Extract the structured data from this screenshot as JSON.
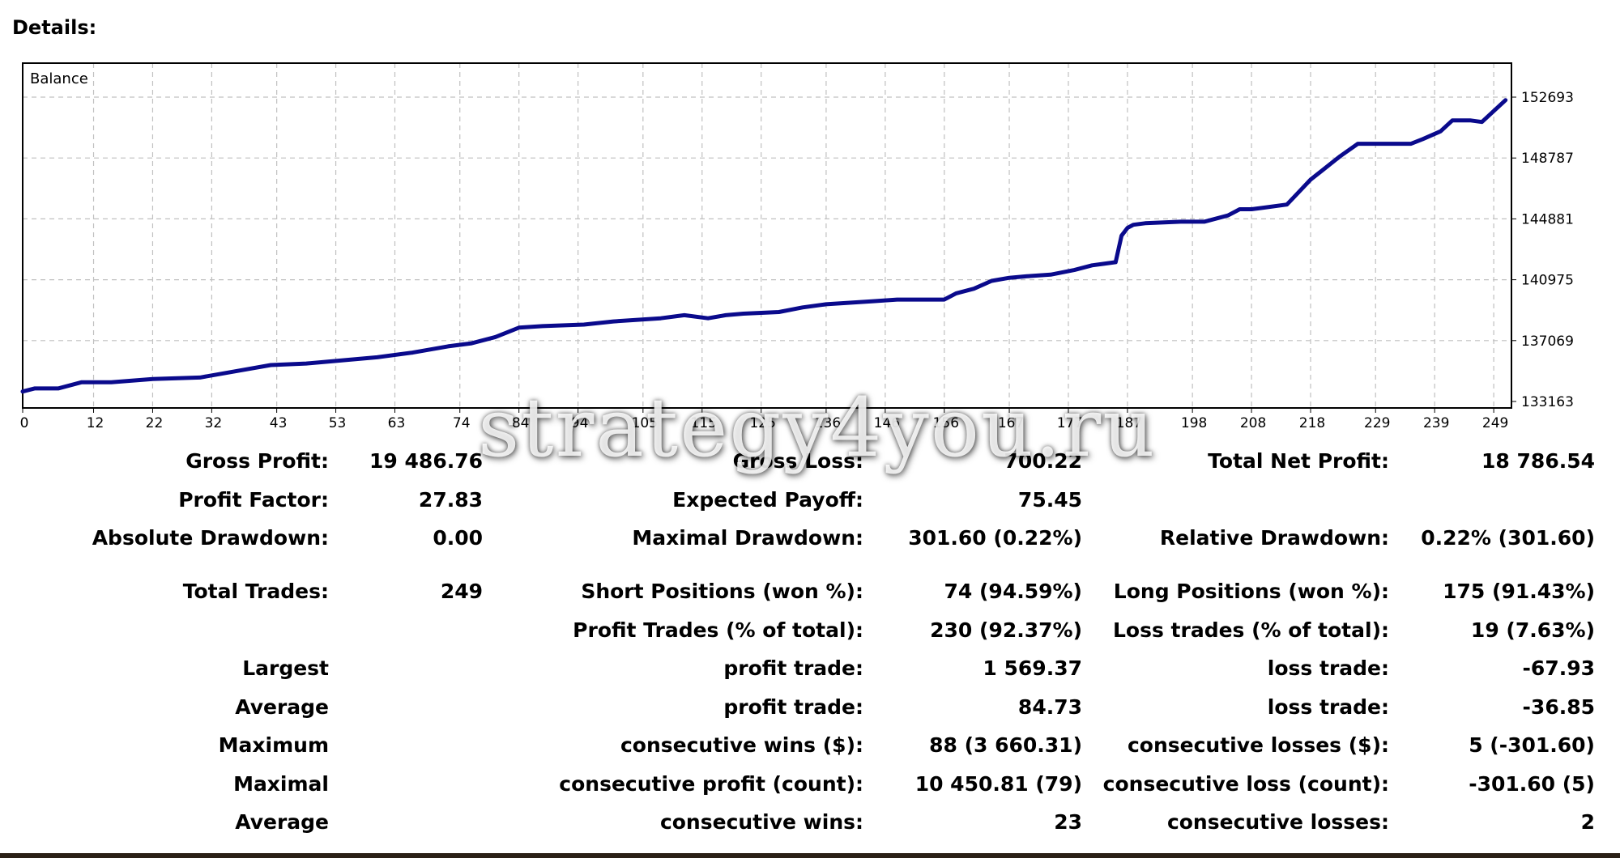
{
  "page": {
    "title": "Details:",
    "watermark": "strategy4you.ru"
  },
  "colors": {
    "line": "#0a0a8c",
    "grid": "#c0c0c0",
    "frame": "#000000",
    "background": "#ffffff"
  },
  "chart_data": {
    "type": "line",
    "title": "Balance",
    "xlabel": "",
    "ylabel": "",
    "xlim": [
      0,
      252
    ],
    "ylim": [
      133163,
      152693
    ],
    "x_ticks": [
      0,
      12,
      22,
      32,
      43,
      53,
      63,
      74,
      84,
      94,
      105,
      115,
      125,
      136,
      146,
      156,
      167,
      177,
      187,
      198,
      208,
      218,
      229,
      239,
      249
    ],
    "y_ticks": [
      152693,
      148787,
      144881,
      140975,
      137069,
      133163
    ],
    "y_tick_labels": [
      "152693",
      "148787",
      "144881",
      "140975",
      "137069",
      "133163"
    ],
    "grid": true,
    "series": [
      {
        "x": [
          0,
          2,
          6,
          10,
          15,
          22,
          30,
          36,
          42,
          48,
          54,
          60,
          66,
          72,
          76,
          80,
          84,
          88,
          95,
          100,
          108,
          112,
          116,
          119,
          122,
          128,
          132,
          136,
          140,
          144,
          148,
          152,
          156,
          158,
          161,
          164,
          167,
          170,
          174,
          178,
          181,
          183,
          185,
          186,
          187,
          188,
          190,
          196,
          200,
          204,
          206,
          208,
          210,
          214,
          216,
          218,
          220,
          223,
          226,
          230,
          235,
          237,
          240,
          242,
          245,
          247,
          249,
          251
        ],
        "y": [
          133800,
          134000,
          134000,
          134400,
          134400,
          134600,
          134700,
          135100,
          135500,
          135600,
          135800,
          136000,
          136300,
          136700,
          136900,
          137300,
          137900,
          138000,
          138100,
          138300,
          138500,
          138700,
          138500,
          138700,
          138800,
          138900,
          139200,
          139400,
          139500,
          139600,
          139700,
          139700,
          139700,
          140100,
          140400,
          140900,
          141100,
          141200,
          141300,
          141600,
          141900,
          142000,
          142100,
          143800,
          144300,
          144500,
          144600,
          144700,
          144700,
          145100,
          145500,
          145500,
          145600,
          145800,
          146600,
          147400,
          148000,
          148900,
          149700,
          149700,
          149700,
          150000,
          150500,
          151200,
          151200,
          151100,
          151800,
          152500
        ]
      }
    ]
  },
  "stats": {
    "rows": [
      [
        "Gross Profit:",
        "19 486.76",
        "Gross Loss:",
        "700.22",
        "Total Net Profit:",
        "18 786.54"
      ],
      [
        "Profit Factor:",
        "27.83",
        "Expected Payoff:",
        "75.45",
        "",
        ""
      ],
      [
        "Absolute Drawdown:",
        "0.00",
        "Maximal Drawdown:",
        "301.60 (0.22%)",
        "Relative Drawdown:",
        "0.22% (301.60)"
      ],
      [
        "Total Trades:",
        "249",
        "Short Positions (won %):",
        "74 (94.59%)",
        "Long Positions (won %):",
        "175 (91.43%)"
      ],
      [
        "",
        "",
        "Profit Trades (% of total):",
        "230 (92.37%)",
        "Loss trades (% of total):",
        "19 (7.63%)"
      ],
      [
        "Largest",
        "",
        "profit trade:",
        "1 569.37",
        "loss trade:",
        "-67.93"
      ],
      [
        "Average",
        "",
        "profit trade:",
        "84.73",
        "loss trade:",
        "-36.85"
      ],
      [
        "Maximum",
        "",
        "consecutive wins ($):",
        "88 (3 660.31)",
        "consecutive losses ($):",
        "5 (-301.60)"
      ],
      [
        "Maximal",
        "",
        "consecutive profit (count):",
        "10 450.81 (79)",
        "consecutive loss (count):",
        "-301.60 (5)"
      ],
      [
        "Average",
        "",
        "consecutive wins:",
        "23",
        "consecutive losses:",
        "2"
      ]
    ]
  }
}
